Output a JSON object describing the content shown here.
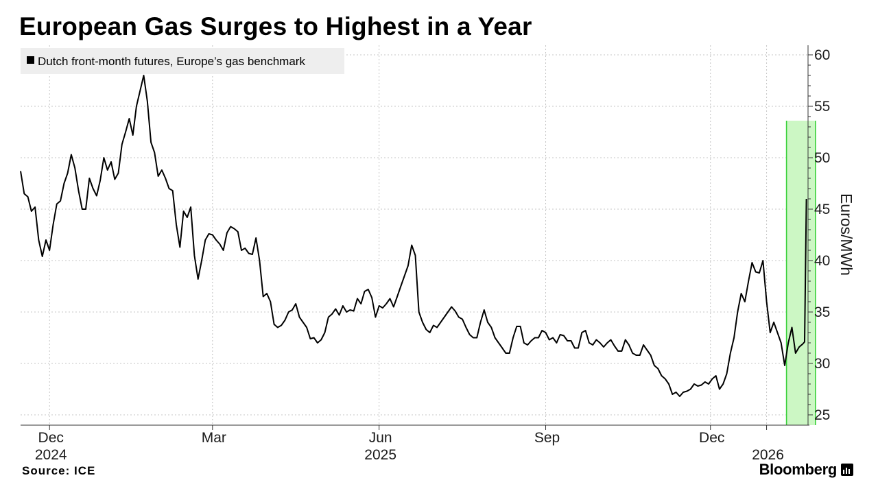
{
  "title": "European Gas Surges to Highest in a Year",
  "source": "Source: ICE",
  "brand": {
    "name": "Bloomberg",
    "icon": "bloomberg-terminal-icon"
  },
  "colors": {
    "line": "#000000",
    "highlight_fill": "#ccf7c4",
    "highlight_stroke": "#39d139",
    "grid": "#c4c4c4",
    "legend_bg": "#eeeeee"
  },
  "chart_data": {
    "type": "line",
    "title": "European Gas Surges to Highest in a Year",
    "ylabel": "Euros/MWh",
    "xlabel": "",
    "ylim": [
      24,
      61
    ],
    "yticks": [
      25,
      30,
      35,
      40,
      45,
      50,
      55,
      60
    ],
    "x_start": "2024-11-15",
    "x_end": "2026-01-22",
    "x_ticks": [
      {
        "date": "2024-12-01",
        "label": "Dec",
        "year": "2024"
      },
      {
        "date": "2025-03-01",
        "label": "Mar",
        "year": ""
      },
      {
        "date": "2025-06-01",
        "label": "Jun",
        "year": "2025"
      },
      {
        "date": "2025-09-01",
        "label": "Sep",
        "year": ""
      },
      {
        "date": "2025-12-01",
        "label": "Dec",
        "year": ""
      },
      {
        "date": "2026-01-01",
        "label": "",
        "year": "2026"
      }
    ],
    "legend": "Dutch front-month futures, Europe’s gas benchmark",
    "legend_position": "top-left",
    "highlight": {
      "start": "2026-01-12",
      "end": "2026-01-28",
      "ymax": 53.6
    },
    "series": [
      {
        "name": "Dutch front-month futures, Europe’s gas benchmark",
        "points": [
          [
            "2024-11-15",
            48.7
          ],
          [
            "2024-11-17",
            46.5
          ],
          [
            "2024-11-19",
            46.2
          ],
          [
            "2024-11-21",
            44.8
          ],
          [
            "2024-11-23",
            45.2
          ],
          [
            "2024-11-25",
            42.0
          ],
          [
            "2024-11-27",
            40.4
          ],
          [
            "2024-11-29",
            42.0
          ],
          [
            "2024-12-01",
            41.0
          ],
          [
            "2024-12-03",
            43.5
          ],
          [
            "2024-12-05",
            45.5
          ],
          [
            "2024-12-07",
            45.8
          ],
          [
            "2024-12-09",
            47.5
          ],
          [
            "2024-12-11",
            48.5
          ],
          [
            "2024-12-13",
            50.3
          ],
          [
            "2024-12-15",
            49.0
          ],
          [
            "2024-12-17",
            46.8
          ],
          [
            "2024-12-19",
            45.0
          ],
          [
            "2024-12-21",
            45.0
          ],
          [
            "2024-12-23",
            48.0
          ],
          [
            "2024-12-25",
            47.0
          ],
          [
            "2024-12-27",
            46.3
          ],
          [
            "2024-12-29",
            47.8
          ],
          [
            "2024-12-31",
            50.0
          ],
          [
            "2025-01-02",
            48.8
          ],
          [
            "2025-01-04",
            49.6
          ],
          [
            "2025-01-06",
            47.9
          ],
          [
            "2025-01-08",
            48.5
          ],
          [
            "2025-01-10",
            51.3
          ],
          [
            "2025-01-12",
            52.5
          ],
          [
            "2025-01-14",
            53.8
          ],
          [
            "2025-01-16",
            52.2
          ],
          [
            "2025-01-18",
            55.0
          ],
          [
            "2025-01-20",
            56.5
          ],
          [
            "2025-01-22",
            58.0
          ],
          [
            "2025-01-24",
            55.5
          ],
          [
            "2025-01-26",
            51.5
          ],
          [
            "2025-01-28",
            50.5
          ],
          [
            "2025-01-30",
            48.2
          ],
          [
            "2025-02-01",
            48.8
          ],
          [
            "2025-02-03",
            48.0
          ],
          [
            "2025-02-05",
            47.0
          ],
          [
            "2025-02-07",
            46.8
          ],
          [
            "2025-02-09",
            43.5
          ],
          [
            "2025-02-11",
            41.3
          ],
          [
            "2025-02-13",
            44.8
          ],
          [
            "2025-02-15",
            44.2
          ],
          [
            "2025-02-17",
            45.2
          ],
          [
            "2025-02-19",
            40.5
          ],
          [
            "2025-02-21",
            38.2
          ],
          [
            "2025-02-23",
            40.0
          ],
          [
            "2025-02-25",
            42.0
          ],
          [
            "2025-02-27",
            42.6
          ],
          [
            "2025-03-01",
            42.5
          ],
          [
            "2025-03-03",
            42.0
          ],
          [
            "2025-03-05",
            41.6
          ],
          [
            "2025-03-07",
            41.0
          ],
          [
            "2025-03-09",
            42.7
          ],
          [
            "2025-03-11",
            43.3
          ],
          [
            "2025-03-13",
            43.1
          ],
          [
            "2025-03-15",
            42.8
          ],
          [
            "2025-03-17",
            41.0
          ],
          [
            "2025-03-19",
            41.2
          ],
          [
            "2025-03-21",
            40.7
          ],
          [
            "2025-03-23",
            40.6
          ],
          [
            "2025-03-25",
            42.2
          ],
          [
            "2025-03-27",
            40.0
          ],
          [
            "2025-03-29",
            36.5
          ],
          [
            "2025-03-31",
            36.8
          ],
          [
            "2025-04-02",
            36.0
          ],
          [
            "2025-04-04",
            33.8
          ],
          [
            "2025-04-06",
            33.5
          ],
          [
            "2025-04-08",
            33.7
          ],
          [
            "2025-04-10",
            34.2
          ],
          [
            "2025-04-12",
            35.0
          ],
          [
            "2025-04-14",
            35.2
          ],
          [
            "2025-04-16",
            35.8
          ],
          [
            "2025-04-18",
            34.5
          ],
          [
            "2025-04-20",
            34.0
          ],
          [
            "2025-04-22",
            33.5
          ],
          [
            "2025-04-24",
            32.4
          ],
          [
            "2025-04-26",
            32.5
          ],
          [
            "2025-04-28",
            32.0
          ],
          [
            "2025-04-30",
            32.3
          ],
          [
            "2025-05-02",
            33.0
          ],
          [
            "2025-05-04",
            34.5
          ],
          [
            "2025-05-06",
            34.8
          ],
          [
            "2025-05-08",
            35.3
          ],
          [
            "2025-05-10",
            34.7
          ],
          [
            "2025-05-12",
            35.6
          ],
          [
            "2025-05-14",
            35.0
          ],
          [
            "2025-05-16",
            35.2
          ],
          [
            "2025-05-18",
            35.1
          ],
          [
            "2025-05-20",
            36.3
          ],
          [
            "2025-05-22",
            35.8
          ],
          [
            "2025-05-24",
            37.0
          ],
          [
            "2025-05-26",
            37.2
          ],
          [
            "2025-05-28",
            36.4
          ],
          [
            "2025-05-30",
            34.5
          ],
          [
            "2025-06-01",
            35.6
          ],
          [
            "2025-06-03",
            35.4
          ],
          [
            "2025-06-05",
            35.8
          ],
          [
            "2025-06-07",
            36.3
          ],
          [
            "2025-06-09",
            35.5
          ],
          [
            "2025-06-11",
            36.5
          ],
          [
            "2025-06-13",
            37.5
          ],
          [
            "2025-06-15",
            38.5
          ],
          [
            "2025-06-17",
            39.5
          ],
          [
            "2025-06-19",
            41.5
          ],
          [
            "2025-06-21",
            40.5
          ],
          [
            "2025-06-23",
            35.0
          ],
          [
            "2025-06-25",
            34.0
          ],
          [
            "2025-06-27",
            33.3
          ],
          [
            "2025-06-29",
            33.0
          ],
          [
            "2025-07-01",
            33.7
          ],
          [
            "2025-07-03",
            33.5
          ],
          [
            "2025-07-05",
            34.0
          ],
          [
            "2025-07-07",
            34.5
          ],
          [
            "2025-07-09",
            35.0
          ],
          [
            "2025-07-11",
            35.5
          ],
          [
            "2025-07-13",
            35.1
          ],
          [
            "2025-07-15",
            34.5
          ],
          [
            "2025-07-17",
            34.3
          ],
          [
            "2025-07-19",
            33.5
          ],
          [
            "2025-07-21",
            32.8
          ],
          [
            "2025-07-23",
            32.5
          ],
          [
            "2025-07-25",
            32.5
          ],
          [
            "2025-07-27",
            34.0
          ],
          [
            "2025-07-29",
            35.2
          ],
          [
            "2025-07-31",
            34.0
          ],
          [
            "2025-08-02",
            33.5
          ],
          [
            "2025-08-04",
            32.5
          ],
          [
            "2025-08-06",
            32.0
          ],
          [
            "2025-08-08",
            31.5
          ],
          [
            "2025-08-10",
            31.0
          ],
          [
            "2025-08-12",
            31.0
          ],
          [
            "2025-08-14",
            32.5
          ],
          [
            "2025-08-16",
            33.6
          ],
          [
            "2025-08-18",
            33.6
          ],
          [
            "2025-08-20",
            32.0
          ],
          [
            "2025-08-22",
            31.8
          ],
          [
            "2025-08-24",
            32.2
          ],
          [
            "2025-08-26",
            32.5
          ],
          [
            "2025-08-28",
            32.5
          ],
          [
            "2025-08-30",
            33.2
          ],
          [
            "2025-09-01",
            33.0
          ],
          [
            "2025-09-03",
            32.3
          ],
          [
            "2025-09-05",
            32.5
          ],
          [
            "2025-09-07",
            32.0
          ],
          [
            "2025-09-09",
            32.8
          ],
          [
            "2025-09-11",
            32.7
          ],
          [
            "2025-09-13",
            32.2
          ],
          [
            "2025-09-15",
            32.2
          ],
          [
            "2025-09-17",
            31.5
          ],
          [
            "2025-09-19",
            31.5
          ],
          [
            "2025-09-21",
            33.0
          ],
          [
            "2025-09-23",
            33.2
          ],
          [
            "2025-09-25",
            32.0
          ],
          [
            "2025-09-27",
            31.8
          ],
          [
            "2025-09-29",
            32.3
          ],
          [
            "2025-10-01",
            32.0
          ],
          [
            "2025-10-03",
            31.6
          ],
          [
            "2025-10-05",
            32.0
          ],
          [
            "2025-10-07",
            32.3
          ],
          [
            "2025-10-09",
            31.7
          ],
          [
            "2025-10-11",
            31.2
          ],
          [
            "2025-10-13",
            31.2
          ],
          [
            "2025-10-15",
            32.3
          ],
          [
            "2025-10-17",
            31.8
          ],
          [
            "2025-10-19",
            31.0
          ],
          [
            "2025-10-21",
            30.8
          ],
          [
            "2025-10-23",
            30.8
          ],
          [
            "2025-10-25",
            31.8
          ],
          [
            "2025-10-27",
            31.3
          ],
          [
            "2025-10-29",
            30.8
          ],
          [
            "2025-10-31",
            29.8
          ],
          [
            "2025-11-02",
            29.5
          ],
          [
            "2025-11-04",
            28.8
          ],
          [
            "2025-11-06",
            28.5
          ],
          [
            "2025-11-08",
            28.0
          ],
          [
            "2025-11-10",
            27.0
          ],
          [
            "2025-11-12",
            27.2
          ],
          [
            "2025-11-14",
            26.8
          ],
          [
            "2025-11-16",
            27.2
          ],
          [
            "2025-11-18",
            27.3
          ],
          [
            "2025-11-20",
            27.5
          ],
          [
            "2025-11-22",
            28.0
          ],
          [
            "2025-11-24",
            27.8
          ],
          [
            "2025-11-26",
            27.9
          ],
          [
            "2025-11-28",
            28.2
          ],
          [
            "2025-11-30",
            28.0
          ],
          [
            "2025-12-02",
            28.5
          ],
          [
            "2025-12-04",
            28.8
          ],
          [
            "2025-12-06",
            27.5
          ],
          [
            "2025-12-08",
            28.0
          ],
          [
            "2025-12-10",
            29.0
          ],
          [
            "2025-12-12",
            31.0
          ],
          [
            "2025-12-14",
            32.5
          ],
          [
            "2025-12-16",
            35.0
          ],
          [
            "2025-12-18",
            36.8
          ],
          [
            "2025-12-20",
            36.0
          ],
          [
            "2025-12-22",
            38.0
          ],
          [
            "2025-12-24",
            39.8
          ],
          [
            "2025-12-26",
            38.9
          ],
          [
            "2025-12-28",
            38.8
          ],
          [
            "2025-12-30",
            40.0
          ],
          [
            "2026-01-01",
            36.0
          ],
          [
            "2026-01-03",
            33.0
          ],
          [
            "2026-01-05",
            34.0
          ],
          [
            "2026-01-07",
            33.0
          ],
          [
            "2026-01-09",
            32.0
          ],
          [
            "2026-01-11",
            29.8
          ],
          [
            "2026-01-13",
            32.0
          ],
          [
            "2026-01-15",
            33.5
          ],
          [
            "2026-01-17",
            31.0
          ],
          [
            "2026-01-19",
            31.6
          ],
          [
            "2026-01-21",
            31.9
          ],
          [
            "2026-01-22",
            32.1
          ],
          [
            "2026-01-23",
            46.0
          ]
        ]
      }
    ]
  }
}
